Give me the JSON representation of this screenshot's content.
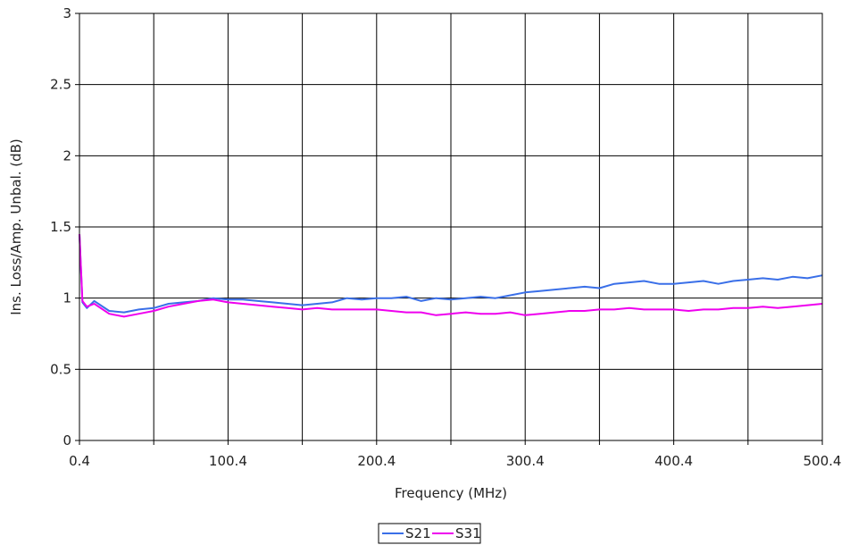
{
  "chart_data": {
    "type": "line",
    "title": "",
    "xlabel": "Frequency (MHz)",
    "ylabel": "Ins. Loss/Amp. Unbal. (dB)",
    "xlim": [
      0.4,
      500.4
    ],
    "ylim": [
      0,
      3
    ],
    "x_ticks": [
      "0.4",
      "100.4",
      "200.4",
      "300.4",
      "400.4",
      "500.4"
    ],
    "y_ticks": [
      "0",
      "0.5",
      "1",
      "1.5",
      "2",
      "2.5",
      "3"
    ],
    "grid": true,
    "legend": "bottom-center",
    "series": [
      {
        "name": "S21",
        "color": "#3a6fe8",
        "x": [
          0.4,
          2.4,
          5.4,
          10.4,
          20.4,
          30.4,
          40.4,
          50.4,
          60.4,
          70.4,
          80.4,
          90.4,
          100.4,
          110.4,
          120.4,
          130.4,
          140.4,
          150.4,
          160.4,
          170.4,
          180.4,
          190.4,
          200.4,
          210.4,
          220.4,
          230.4,
          240.4,
          250.4,
          260.4,
          270.4,
          280.4,
          290.4,
          300.4,
          310.4,
          320.4,
          330.4,
          340.4,
          350.4,
          360.4,
          370.4,
          380.4,
          390.4,
          400.4,
          410.4,
          420.4,
          430.4,
          440.4,
          450.4,
          460.4,
          470.4,
          480.4,
          490.4,
          500.4
        ],
        "y": [
          1.45,
          0.97,
          0.93,
          0.98,
          0.91,
          0.9,
          0.92,
          0.93,
          0.96,
          0.97,
          0.98,
          1.0,
          0.99,
          0.99,
          0.98,
          0.97,
          0.96,
          0.95,
          0.96,
          0.97,
          1.0,
          0.99,
          1.0,
          1.0,
          1.01,
          0.98,
          1.0,
          0.99,
          1.0,
          1.01,
          1.0,
          1.02,
          1.04,
          1.05,
          1.06,
          1.07,
          1.08,
          1.07,
          1.1,
          1.11,
          1.12,
          1.1,
          1.1,
          1.11,
          1.12,
          1.1,
          1.12,
          1.13,
          1.14,
          1.13,
          1.15,
          1.14,
          1.16
        ]
      },
      {
        "name": "S31",
        "color": "#ee00ee",
        "x": [
          0.4,
          2.4,
          5.4,
          10.4,
          20.4,
          30.4,
          40.4,
          50.4,
          60.4,
          70.4,
          80.4,
          90.4,
          100.4,
          110.4,
          120.4,
          130.4,
          140.4,
          150.4,
          160.4,
          170.4,
          180.4,
          190.4,
          200.4,
          210.4,
          220.4,
          230.4,
          240.4,
          250.4,
          260.4,
          270.4,
          280.4,
          290.4,
          300.4,
          310.4,
          320.4,
          330.4,
          340.4,
          350.4,
          360.4,
          370.4,
          380.4,
          390.4,
          400.4,
          410.4,
          420.4,
          430.4,
          440.4,
          450.4,
          460.4,
          470.4,
          480.4,
          490.4,
          500.4
        ],
        "y": [
          1.45,
          0.98,
          0.94,
          0.96,
          0.89,
          0.87,
          0.89,
          0.91,
          0.94,
          0.96,
          0.98,
          0.99,
          0.97,
          0.96,
          0.95,
          0.94,
          0.93,
          0.92,
          0.93,
          0.92,
          0.92,
          0.92,
          0.92,
          0.91,
          0.9,
          0.9,
          0.88,
          0.89,
          0.9,
          0.89,
          0.89,
          0.9,
          0.88,
          0.89,
          0.9,
          0.91,
          0.91,
          0.92,
          0.92,
          0.93,
          0.92,
          0.92,
          0.92,
          0.91,
          0.92,
          0.92,
          0.93,
          0.93,
          0.94,
          0.93,
          0.94,
          0.95,
          0.96
        ]
      }
    ]
  }
}
